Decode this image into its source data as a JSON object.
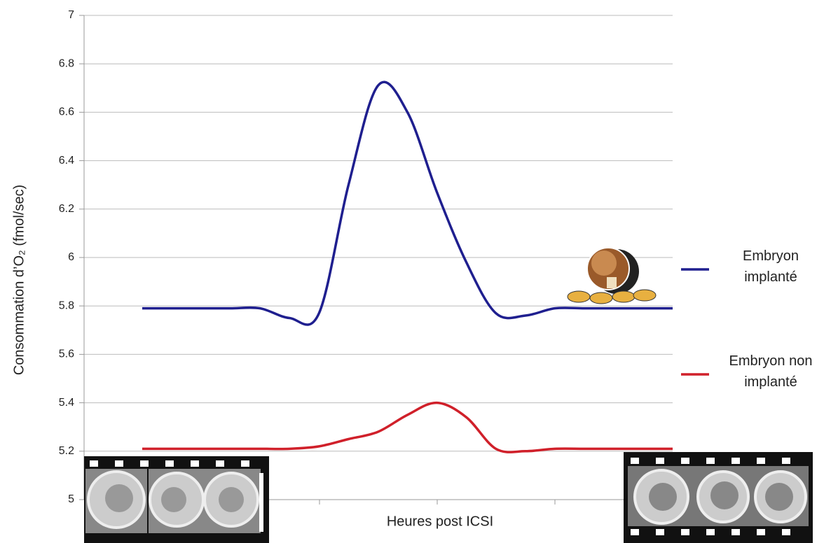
{
  "chart_data": {
    "type": "line",
    "ylabel": "Consommation d’O₂ (fmol/sec)",
    "xlabel": "Heures post ICSI",
    "categories": [
      null,
      null,
      null,
      null,
      null,
      null,
      null,
      null,
      null,
      null,
      null,
      null,
      null,
      null,
      null,
      null,
      null,
      null,
      null
    ],
    "series": [
      {
        "name": "Embryon implanté",
        "color": "#1f1f8f",
        "values": [
          5.79,
          5.79,
          5.79,
          5.79,
          5.79,
          5.75,
          5.77,
          6.3,
          6.71,
          6.6,
          6.27,
          5.98,
          5.77,
          5.76,
          5.79,
          5.79,
          5.79,
          5.79,
          5.79
        ]
      },
      {
        "name": "Embryon non implanté",
        "color": "#d0202a",
        "values": [
          5.21,
          5.21,
          5.21,
          5.21,
          5.21,
          5.21,
          5.22,
          5.25,
          5.28,
          5.35,
          5.4,
          5.34,
          5.21,
          5.2,
          5.21,
          5.21,
          5.21,
          5.21,
          5.21
        ]
      }
    ],
    "ylim": [
      5,
      7
    ],
    "yticks": [
      5,
      5.2,
      5.4,
      5.6,
      5.8,
      6,
      6.2,
      6.4,
      6.6,
      6.8,
      7
    ],
    "grid": true
  }
}
